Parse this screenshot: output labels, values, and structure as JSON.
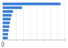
{
  "chart_data": {
    "type": "bar",
    "orientation": "horizontal",
    "categories": [
      null,
      null,
      null,
      null,
      null,
      null,
      null,
      null,
      null,
      null
    ],
    "values": [
      4200,
      1400,
      750,
      650,
      580,
      520,
      480,
      430,
      390,
      370
    ],
    "color": "#3a7fd5",
    "xlim": [
      0,
      4600
    ],
    "xticks": [
      0,
      {
        "value": 500,
        "label": null
      },
      {
        "value": 1000,
        "label": null
      },
      {
        "value": 1500,
        "label": null
      },
      {
        "value": 2000,
        "label": null
      },
      {
        "value": 2500,
        "label": null
      },
      {
        "value": 3000,
        "label": null
      },
      {
        "value": 3500,
        "label": null
      },
      {
        "value": 4000,
        "label": null
      },
      {
        "value": 4500,
        "label": null
      }
    ],
    "grid": true,
    "tick_labels": "x"
  }
}
